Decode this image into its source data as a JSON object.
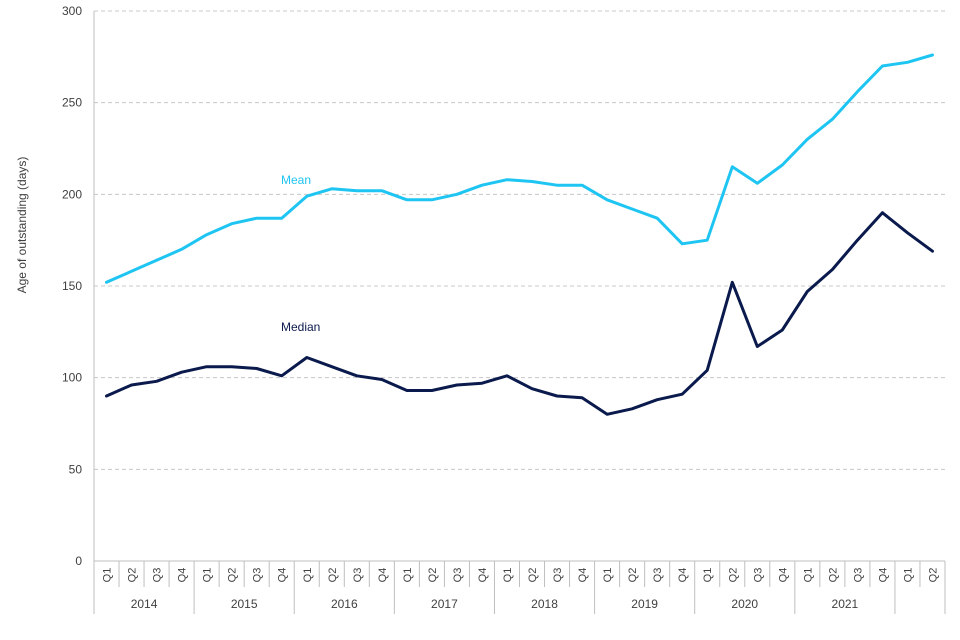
{
  "chart_data": {
    "type": "line",
    "ylabel": "Age of outstanding (days)",
    "ylim": [
      0,
      300
    ],
    "yticks": [
      0,
      50,
      100,
      150,
      200,
      250,
      300
    ],
    "grid": "horizontal dashed",
    "legend": "inline series labels",
    "years": [
      {
        "label": "2014",
        "quarters": 4
      },
      {
        "label": "2015",
        "quarters": 4
      },
      {
        "label": "2016",
        "quarters": 4
      },
      {
        "label": "2017",
        "quarters": 4
      },
      {
        "label": "2018",
        "quarters": 4
      },
      {
        "label": "2019",
        "quarters": 4
      },
      {
        "label": "2020",
        "quarters": 4
      },
      {
        "label": "2021",
        "quarters": 4
      },
      {
        "label": "",
        "quarters": 2
      }
    ],
    "categories": [
      "Q1",
      "Q2",
      "Q3",
      "Q4",
      "Q1",
      "Q2",
      "Q3",
      "Q4",
      "Q1",
      "Q2",
      "Q3",
      "Q4",
      "Q1",
      "Q2",
      "Q3",
      "Q4",
      "Q1",
      "Q2",
      "Q3",
      "Q4",
      "Q1",
      "Q2",
      "Q3",
      "Q4",
      "Q1",
      "Q2",
      "Q3",
      "Q4",
      "Q1",
      "Q2",
      "Q3",
      "Q4",
      "Q1",
      "Q2"
    ],
    "series": [
      {
        "name": "Mean",
        "color": "#1ec5f2",
        "values": [
          152,
          158,
          164,
          170,
          178,
          184,
          187,
          187,
          199,
          203,
          202,
          202,
          197,
          197,
          200,
          205,
          208,
          207,
          205,
          205,
          197,
          192,
          187,
          173,
          175,
          215,
          206,
          216,
          230,
          241,
          256,
          270,
          272,
          276
        ]
      },
      {
        "name": "Median",
        "color": "#0b1a4d",
        "values": [
          90,
          96,
          98,
          103,
          106,
          106,
          105,
          101,
          111,
          106,
          101,
          99,
          93,
          93,
          96,
          97,
          101,
          94,
          90,
          89,
          80,
          83,
          88,
          91,
          104,
          152,
          117,
          126,
          147,
          159,
          175,
          190,
          179,
          169
        ]
      }
    ]
  }
}
